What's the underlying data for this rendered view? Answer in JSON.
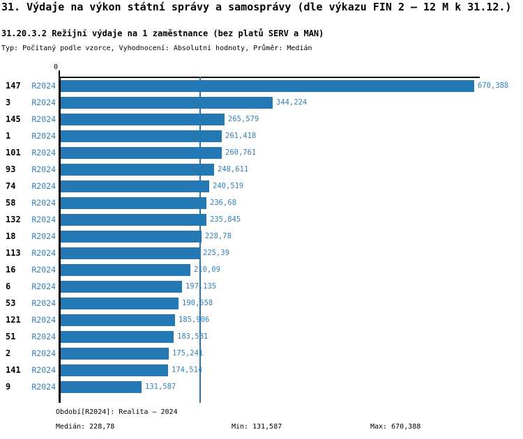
{
  "header": {
    "title": "31. Výdaje na výkon státní správy a samosprávy (dle výkazu FIN 2 – 12 M k 31.12.)",
    "subtitle": "31.20.3.2 Režijní výdaje na 1 zaměstnance (bez platů SERV a MAN)",
    "meta": "Typ: Počítaný podle vzorce, Vyhodnocení: Absolutní hodnoty, Průměr: Medián"
  },
  "chart_data": {
    "type": "bar",
    "orientation": "horizontal",
    "title": "31.20.3.2 Režijní výdaje na 1 zaměstnance (bez platů SERV a MAN)",
    "series_name": "R2024",
    "categories": [
      "147",
      "3",
      "145",
      "1",
      "101",
      "93",
      "74",
      "58",
      "132",
      "18",
      "113",
      "16",
      "6",
      "53",
      "121",
      "51",
      "2",
      "141",
      "9"
    ],
    "values": [
      670.388,
      344.224,
      265.579,
      261.418,
      260.761,
      248.611,
      240.519,
      236.68,
      235.845,
      228.78,
      225.39,
      210.09,
      197.135,
      190.558,
      185.906,
      183.581,
      175.241,
      174.514,
      131.587
    ],
    "value_labels": [
      "670,388",
      "344,224",
      "265,579",
      "261,418",
      "260,761",
      "248,611",
      "240,519",
      "236,68",
      "235,845",
      "228,78",
      "225,39",
      "210,09",
      "197,135",
      "190,558",
      "185,906",
      "183,581",
      "175,241",
      "174,514",
      "131,587"
    ],
    "x_axis": {
      "zero_label": "0",
      "min": 0,
      "max": 670.388
    },
    "median_value": 228.78,
    "grid": false,
    "legend_position": "none",
    "colors": {
      "bar": "#2478b4",
      "blue_text": "#3181ba",
      "median_line": "#2d74a8",
      "axis": "#000000"
    }
  },
  "footer": {
    "period": "Období[R2024]: Realita – 2024",
    "median": "Medián: 228,78",
    "min": "Min: 131,587",
    "max": "Max: 670,388"
  }
}
